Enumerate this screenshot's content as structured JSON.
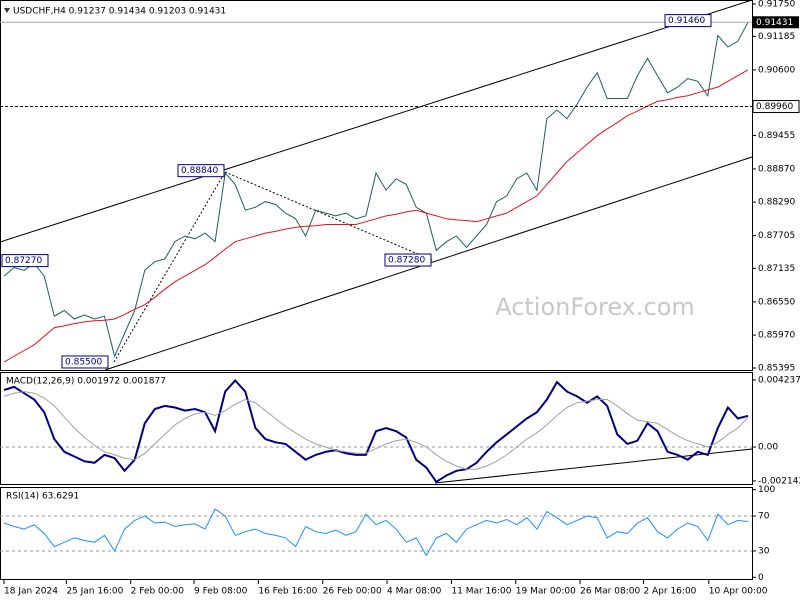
{
  "chart_data": [
    {
      "type": "line",
      "title": "USDCHF,H4 0.91237 0.91434 0.91203 0.91431",
      "watermark": "ActionForex.com",
      "xlim": [
        0,
        74
      ],
      "ylim": [
        0.8536,
        0.9182
      ],
      "yticks": [
        {
          "value": 0.9175,
          "label": "0.91750"
        },
        0.91185,
        {
          "value": 0.906,
          "label": "0.90600"
        },
        0.89455,
        {
          "value": 0.8887,
          "label": "0.88870"
        },
        {
          "value": 0.8829,
          "label": "0.88290"
        },
        0.87705,
        0.87135,
        {
          "value": 0.8655,
          "label": "0.86550"
        },
        {
          "value": 0.8597,
          "label": "0.85970"
        },
        0.85395
      ],
      "series": [
        {
          "color": "#1f5f5f",
          "line_width": 1,
          "values": [
            0.87,
            0.8715,
            0.871,
            0.8722,
            0.87,
            0.863,
            0.864,
            0.8625,
            0.8632,
            0.8625,
            0.863,
            0.856,
            0.86,
            0.864,
            0.871,
            0.8725,
            0.873,
            0.876,
            0.877,
            0.8765,
            0.8775,
            0.876,
            0.888,
            0.886,
            0.8815,
            0.882,
            0.883,
            0.8825,
            0.881,
            0.88,
            0.877,
            0.8815,
            0.881,
            0.8805,
            0.881,
            0.88,
            0.8805,
            0.888,
            0.885,
            0.887,
            0.886,
            0.882,
            0.881,
            0.8745,
            0.876,
            0.877,
            0.875,
            0.877,
            0.879,
            0.883,
            0.884,
            0.887,
            0.888,
            0.885,
            0.8975,
            0.899,
            0.8975,
            0.9,
            0.903,
            0.9055,
            0.901,
            0.901,
            0.901,
            0.905,
            0.908,
            0.905,
            0.902,
            0.903,
            0.9045,
            0.904,
            0.9015,
            0.912,
            0.91,
            0.911,
            0.9143
          ]
        },
        {
          "color": "#e0141e",
          "line_width": 1,
          "values": [
            0.855,
            0.856,
            0.857,
            0.858,
            0.8595,
            0.861,
            0.8613,
            0.8617,
            0.862,
            0.8622,
            0.8623,
            0.8625,
            0.8633,
            0.8642,
            0.865,
            0.8663,
            0.8677,
            0.869,
            0.87,
            0.871,
            0.872,
            0.8733,
            0.8747,
            0.876,
            0.8765,
            0.877,
            0.8775,
            0.8778,
            0.8782,
            0.8785,
            0.8787,
            0.8788,
            0.879,
            0.879,
            0.879,
            0.879,
            0.8795,
            0.88,
            0.8805,
            0.8808,
            0.8812,
            0.8815,
            0.881,
            0.8805,
            0.88,
            0.8798,
            0.8797,
            0.8795,
            0.88,
            0.8805,
            0.881,
            0.882,
            0.883,
            0.884,
            0.886,
            0.888,
            0.89,
            0.8915,
            0.893,
            0.8945,
            0.8957,
            0.8968,
            0.898,
            0.8988,
            0.8997,
            0.9005,
            0.9008,
            0.9012,
            0.9015,
            0.902,
            0.9025,
            0.903,
            0.904,
            0.905,
            0.906
          ]
        }
      ],
      "level": {
        "value": 0.8996,
        "label": "0.89960"
      },
      "last_price": 0.91431,
      "annotations": [
        {
          "value": 0.9146,
          "label": "0.91460"
        },
        {
          "value": 0.8884,
          "label": "0.88840"
        },
        {
          "value": 0.8728,
          "label": "0.87280"
        },
        {
          "value": 0.8727,
          "label": "0.87270"
        },
        {
          "value": 0.855,
          "label": "0.85500"
        }
      ]
    },
    {
      "type": "line",
      "title": "MACD(12,26,9) 0.001972 0.001877",
      "xlim": [
        0,
        74
      ],
      "ylim": [
        -0.0024,
        0.00474
      ],
      "yticks": [
        0.004237,
        {
          "value": 0,
          "label": "0.00"
        },
        -0.002142
      ],
      "reference_lines": [
        0
      ],
      "series": [
        {
          "color": "#000080",
          "line_width": 2,
          "values": [
            0.0036,
            0.0038,
            0.0034,
            0.003,
            0.0022,
            0.0005,
            -0.0003,
            -0.0006,
            -0.0009,
            -0.001,
            -0.0005,
            -0.0007,
            -0.0015,
            -0.0008,
            0.0015,
            0.0024,
            0.0026,
            0.0025,
            0.0023,
            0.0024,
            0.0022,
            0.001,
            0.0035,
            0.0042,
            0.0035,
            0.0012,
            0.0005,
            0.0003,
            0.0002,
            -0.0003,
            -0.0008,
            -0.0005,
            -0.0003,
            -0.0002,
            -0.0004,
            -0.0005,
            -0.0005,
            0.001,
            0.0012,
            0.001,
            0.0006,
            -0.0008,
            -0.0013,
            -0.0022,
            -0.0018,
            -0.0015,
            -0.0014,
            -0.001,
            -0.0003,
            0.0003,
            0.0008,
            0.0013,
            0.0018,
            0.0022,
            0.003,
            0.0041,
            0.0035,
            0.0032,
            0.0028,
            0.0032,
            0.0026,
            0.0008,
            0.0002,
            0.0004,
            0.0015,
            0.001,
            -0.0003,
            -0.0005,
            -0.0008,
            -0.0003,
            -0.0005,
            0.0012,
            0.0025,
            0.0018,
            0.001972
          ]
        },
        {
          "color": "#a0a0a0",
          "line_width": 1,
          "values": [
            0.0032,
            0.0034,
            0.0035,
            0.0034,
            0.0031,
            0.0026,
            0.0019,
            0.0012,
            0.0006,
            0.0001,
            -0.0003,
            -0.0005,
            -0.0007,
            -0.0008,
            -0.0004,
            0.0002,
            0.0008,
            0.0014,
            0.0018,
            0.0021,
            0.0022,
            0.002,
            0.0023,
            0.0027,
            0.003,
            0.0028,
            0.0023,
            0.0018,
            0.0013,
            0.0009,
            0.0005,
            0.0002,
            0.0,
            -0.0002,
            -0.0003,
            -0.0004,
            -0.0004,
            -0.0001,
            0.0002,
            0.0004,
            0.0005,
            0.0003,
            0.0,
            -0.0005,
            -0.0009,
            -0.0012,
            -0.0014,
            -0.0014,
            -0.0012,
            -0.0009,
            -0.0005,
            0.0,
            0.0005,
            0.0009,
            0.0014,
            0.002,
            0.0025,
            0.0028,
            0.0029,
            0.003,
            0.003,
            0.0026,
            0.0021,
            0.0017,
            0.0016,
            0.0015,
            0.0011,
            0.0007,
            0.0004,
            0.0002,
            0.0,
            0.0003,
            0.0008,
            0.0012,
            0.001877
          ]
        }
      ]
    },
    {
      "type": "line",
      "title": "RSI(14) 63.6291",
      "xlim": [
        0,
        74
      ],
      "ylim": [
        -3.1,
        103.1
      ],
      "yticks": [
        100,
        70,
        30,
        0
      ],
      "reference_lines": [
        70,
        30
      ],
      "xticks": [
        {
          "value": 0,
          "label": "18 Jan 2024"
        },
        {
          "value": 6.2,
          "label": "25 Jan 16:00"
        },
        {
          "value": 12.6,
          "label": "2 Feb 00:00"
        },
        {
          "value": 18.9,
          "label": "9 Feb 08:00"
        },
        {
          "value": 25.3,
          "label": "16 Feb 16:00"
        },
        {
          "value": 31.7,
          "label": "26 Feb 00:00"
        },
        {
          "value": 38.1,
          "label": "4 Mar 08:00"
        },
        {
          "value": 44.5,
          "label": "11 Mar 16:00"
        },
        {
          "value": 50.9,
          "label": "19 Mar 00:00"
        },
        {
          "value": 57.3,
          "label": "26 Mar 08:00"
        },
        {
          "value": 63.6,
          "label": "2 Apr 16:00"
        },
        {
          "value": 70.1,
          "label": "10 Apr 00:00"
        }
      ],
      "series": [
        {
          "color": "#1e90ff",
          "line_width": 1,
          "values": [
            62,
            58,
            55,
            60,
            50,
            35,
            40,
            45,
            42,
            40,
            48,
            30,
            55,
            65,
            70,
            62,
            63,
            58,
            60,
            61,
            55,
            78,
            70,
            48,
            52,
            55,
            50,
            48,
            45,
            35,
            58,
            52,
            50,
            54,
            48,
            52,
            72,
            60,
            65,
            55,
            40,
            45,
            25,
            45,
            50,
            40,
            55,
            60,
            65,
            62,
            66,
            60,
            68,
            55,
            75,
            68,
            60,
            65,
            70,
            68,
            45,
            52,
            50,
            62,
            68,
            52,
            45,
            55,
            62,
            58,
            42,
            72,
            60,
            65,
            63.6291
          ]
        }
      ]
    }
  ]
}
